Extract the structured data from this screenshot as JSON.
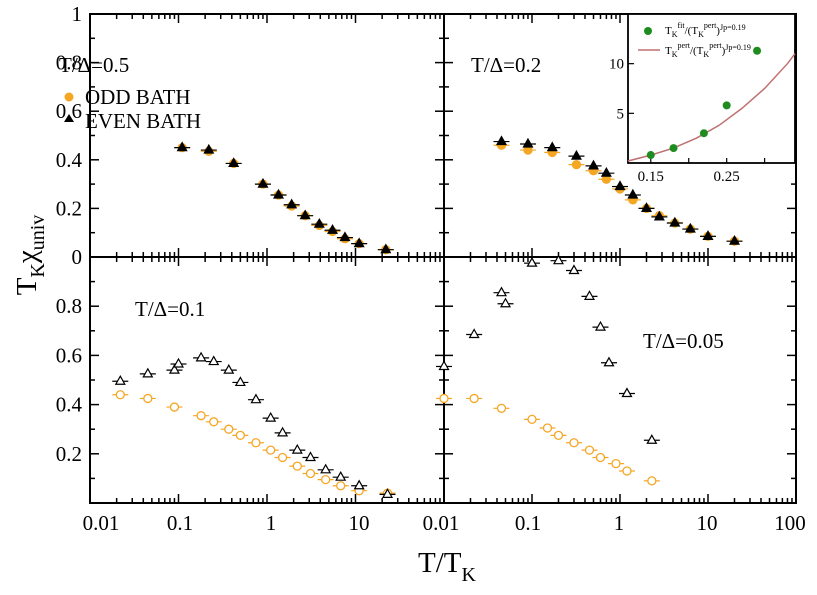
{
  "chart_data": {
    "type": "scatter",
    "xlabel": "T/T_K",
    "ylabel": "T_K χ_univ",
    "x_scale": "log",
    "x_ticks": [
      "0.01",
      "0.1",
      "1",
      "10",
      "0.01",
      "0.1",
      "1",
      "10",
      "100"
    ],
    "y_ticks_top": [
      "0",
      "0.2",
      "0.4",
      "0.6",
      "0.8",
      "1"
    ],
    "y_ticks_bottom": [
      "0.2",
      "0.4",
      "0.6",
      "0.8"
    ],
    "legend": [
      {
        "label": "ODD BATH",
        "marker": "circle",
        "color": "#f5a623"
      },
      {
        "label": "EVEN BATH",
        "marker": "triangle",
        "color": "#000000"
      }
    ],
    "colors": {
      "odd": "#f5a623",
      "even": "#000000",
      "inset_points": "#1e8c1e",
      "inset_curve": "#c07070"
    },
    "panels": [
      {
        "label": "T/Δ=0.5",
        "xlim": [
          0.01,
          100
        ],
        "ylim": [
          0,
          1
        ],
        "odd": {
          "x": [
            0.11,
            0.22,
            0.42,
            0.9,
            1.35,
            1.9,
            2.7,
            3.9,
            5.5,
            7.6,
            11,
            22
          ],
          "y": [
            0.45,
            0.435,
            0.385,
            0.3,
            0.255,
            0.21,
            0.17,
            0.13,
            0.105,
            0.075,
            0.055,
            0.03
          ]
        },
        "even": {
          "x": [
            0.11,
            0.22,
            0.42,
            0.9,
            1.35,
            1.9,
            2.7,
            3.9,
            5.5,
            7.6,
            11,
            22
          ],
          "y": [
            0.45,
            0.44,
            0.385,
            0.3,
            0.255,
            0.215,
            0.17,
            0.135,
            0.11,
            0.08,
            0.055,
            0.03
          ]
        }
      },
      {
        "label": "T/Δ=0.2",
        "xlim": [
          0.01,
          100
        ],
        "ylim": [
          0,
          1
        ],
        "odd": {
          "x": [
            0.045,
            0.09,
            0.17,
            0.32,
            0.5,
            0.7,
            1.0,
            1.4,
            2.0,
            2.8,
            4.2,
            6.3,
            10,
            20
          ],
          "y": [
            0.46,
            0.44,
            0.43,
            0.38,
            0.355,
            0.32,
            0.28,
            0.235,
            0.2,
            0.17,
            0.14,
            0.115,
            0.085,
            0.065
          ]
        },
        "even": {
          "x": [
            0.045,
            0.09,
            0.17,
            0.32,
            0.5,
            0.7,
            1.0,
            1.4,
            2.0,
            2.8,
            4.2,
            6.3,
            10,
            20
          ],
          "y": [
            0.475,
            0.465,
            0.45,
            0.415,
            0.375,
            0.345,
            0.29,
            0.255,
            0.2,
            0.165,
            0.14,
            0.115,
            0.085,
            0.065
          ]
        }
      },
      {
        "label": "T/Δ=0.1",
        "xlim": [
          0.01,
          100
        ],
        "ylim": [
          0,
          1
        ],
        "odd": {
          "x": [
            0.022,
            0.045,
            0.09,
            0.18,
            0.25,
            0.37,
            0.5,
            0.75,
            1.1,
            1.5,
            2.2,
            3.1,
            4.6,
            6.8,
            11,
            23
          ],
          "y": [
            0.44,
            0.425,
            0.39,
            0.355,
            0.33,
            0.3,
            0.275,
            0.245,
            0.215,
            0.185,
            0.15,
            0.12,
            0.095,
            0.07,
            0.05,
            0.04
          ]
        },
        "even": {
          "x": [
            0.022,
            0.045,
            0.09,
            0.1,
            0.18,
            0.25,
            0.37,
            0.5,
            0.75,
            1.1,
            1.5,
            2.2,
            3.1,
            4.6,
            6.8,
            11,
            23
          ],
          "y": [
            0.495,
            0.525,
            0.54,
            0.565,
            0.59,
            0.575,
            0.54,
            0.49,
            0.42,
            0.345,
            0.285,
            0.215,
            0.185,
            0.135,
            0.105,
            0.07,
            0.035
          ]
        }
      },
      {
        "label": "T/Δ=0.05",
        "xlim": [
          0.01,
          100
        ],
        "ylim": [
          0,
          1
        ],
        "odd": {
          "x": [
            0.01,
            0.022,
            0.045,
            0.1,
            0.15,
            0.2,
            0.3,
            0.45,
            0.6,
            0.9,
            1.2,
            2.3
          ],
          "y": [
            0.425,
            0.425,
            0.385,
            0.34,
            0.305,
            0.275,
            0.245,
            0.215,
            0.185,
            0.16,
            0.13,
            0.09
          ]
        },
        "even": {
          "x": [
            0.01,
            0.022,
            0.045,
            0.05,
            0.1,
            0.2,
            0.3,
            0.45,
            0.6,
            0.75,
            1.2,
            2.3
          ],
          "y": [
            0.555,
            0.685,
            0.855,
            0.81,
            0.975,
            0.985,
            0.945,
            0.84,
            0.715,
            0.57,
            0.445,
            0.255
          ]
        }
      }
    ],
    "inset": {
      "xlim": [
        0.12,
        0.34
      ],
      "ylim": [
        0,
        15
      ],
      "x_ticks": [
        "0.15",
        "0.25"
      ],
      "y_ticks": [
        "5",
        "10"
      ],
      "legend": [
        {
          "base": "T",
          "sub": "K",
          "sup": "fit",
          "mid": "/(T",
          "sub2": "K",
          "sup2": "pert",
          "tail": ")",
          "sup3": "Jp=0.19",
          "marker": "dot"
        },
        {
          "base": "T",
          "sub": "K",
          "sup": "pert",
          "mid": "/(T",
          "sub2": "K",
          "sup2": "pert",
          "tail": ")",
          "sup3": "Jp=0.19",
          "marker": "line"
        }
      ],
      "points": {
        "x": [
          0.15,
          0.18,
          0.22,
          0.25,
          0.29
        ],
        "y": [
          0.8,
          1.5,
          3.0,
          5.8,
          11.3
        ]
      },
      "curve": {
        "x": [
          0.12,
          0.15,
          0.18,
          0.21,
          0.24,
          0.27,
          0.3,
          0.33,
          0.34
        ],
        "y": [
          0.2,
          0.8,
          1.5,
          2.5,
          3.8,
          5.5,
          7.5,
          10.0,
          11.0
        ]
      }
    }
  }
}
